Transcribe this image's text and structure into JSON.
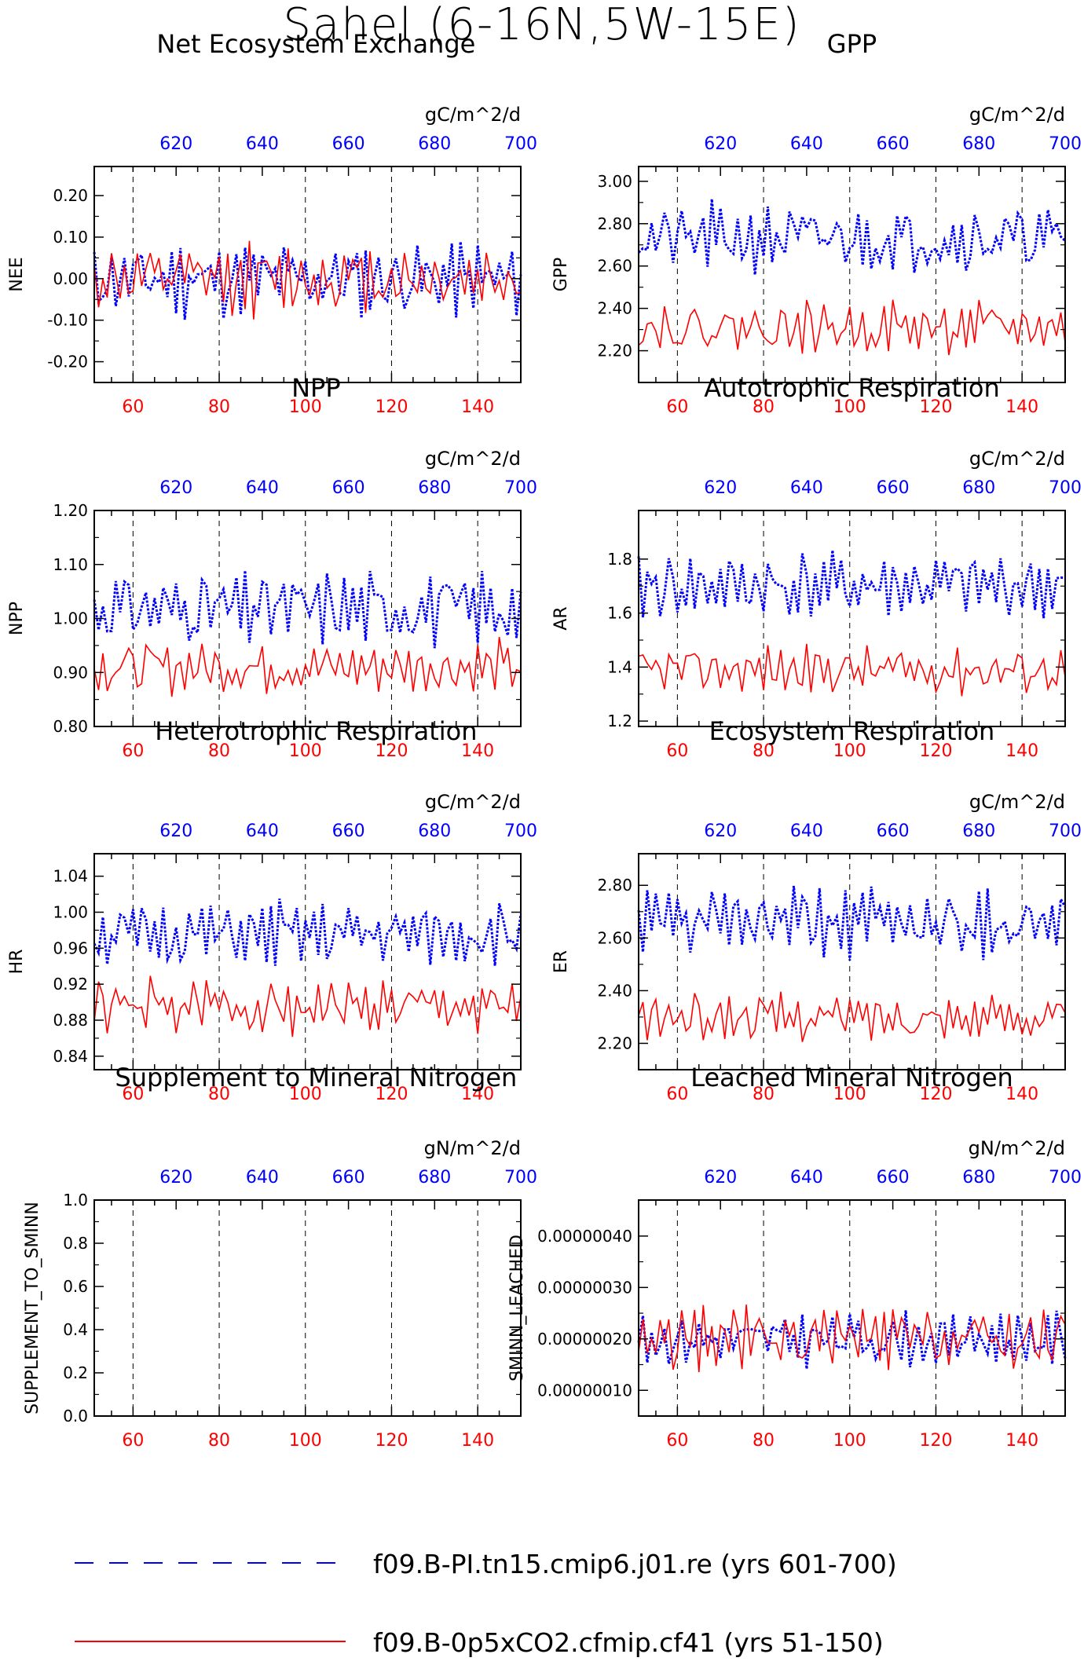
{
  "page": {
    "title": "Sahel (6-16N,5W-15E)",
    "colors": {
      "red": "#ff0000",
      "blue": "#0000ff",
      "axis": "#000000"
    }
  },
  "legend": {
    "blue_label": "f09.B-PI.tn15.cmip6.j01.re (yrs 601-700)",
    "red_label": "f09.B-0p5xCO2.cfmip.cf41 (yrs 51-150)"
  },
  "chart_data": [
    {
      "type": "line",
      "title": "Net Ecosystem Exchange",
      "units": "gC/m^2/d",
      "ylabel": "NEE",
      "ylim": [
        -0.25,
        0.27
      ],
      "yticks": [
        "-0.20",
        "-0.10",
        "0.00",
        "0.10",
        "0.20"
      ],
      "ytick_values": [
        -0.2,
        -0.1,
        0.0,
        0.1,
        0.2
      ],
      "x_red_ticks": [
        "60",
        "80",
        "100",
        "120",
        "140"
      ],
      "x_blue_ticks": [
        "620",
        "640",
        "660",
        "680",
        "700"
      ],
      "xlim_red": [
        51,
        150
      ],
      "xlim_blue": [
        601,
        700
      ],
      "dashed_vlines_at_red_x": [
        60,
        80,
        100,
        120,
        140
      ],
      "series": [
        {
          "name": "f09.B-PI.tn15.cmip6.j01.re (yrs 601-700)",
          "color": "blue",
          "style": "dotted",
          "mean": 0.0,
          "amp": 0.09,
          "seed": 11
        },
        {
          "name": "f09.B-0p5xCO2.cfmip.cf41 (yrs 51-150)",
          "color": "red",
          "style": "solid",
          "mean": 0.0,
          "amp": 0.08,
          "seed": 12
        }
      ]
    },
    {
      "type": "line",
      "title": "GPP",
      "units": "gC/m^2/d",
      "ylabel": "GPP",
      "ylim": [
        2.05,
        3.07
      ],
      "yticks": [
        "2.20",
        "2.40",
        "2.60",
        "2.80",
        "3.00"
      ],
      "ytick_values": [
        2.2,
        2.4,
        2.6,
        2.8,
        3.0
      ],
      "x_red_ticks": [
        "60",
        "80",
        "100",
        "120",
        "140"
      ],
      "x_blue_ticks": [
        "620",
        "640",
        "660",
        "680",
        "700"
      ],
      "xlim_red": [
        51,
        150
      ],
      "xlim_blue": [
        601,
        700
      ],
      "dashed_vlines_at_red_x": [
        60,
        80,
        100,
        120,
        140
      ],
      "series": [
        {
          "name": "f09.B-PI.tn15.cmip6.j01.re (yrs 601-700)",
          "color": "blue",
          "style": "dotted",
          "mean": 2.73,
          "amp": 0.16,
          "seed": 21
        },
        {
          "name": "f09.B-0p5xCO2.cfmip.cf41 (yrs 51-150)",
          "color": "red",
          "style": "solid",
          "mean": 2.31,
          "amp": 0.12,
          "seed": 22
        }
      ]
    },
    {
      "type": "line",
      "title": "NPP",
      "units": "gC/m^2/d",
      "ylabel": "NPP",
      "ylim": [
        0.8,
        1.2
      ],
      "yticks": [
        "0.80",
        "0.90",
        "1.00",
        "1.10",
        "1.20"
      ],
      "ytick_values": [
        0.8,
        0.9,
        1.0,
        1.1,
        1.2
      ],
      "x_red_ticks": [
        "60",
        "80",
        "100",
        "120",
        "140"
      ],
      "x_blue_ticks": [
        "620",
        "640",
        "660",
        "680",
        "700"
      ],
      "xlim_red": [
        51,
        150
      ],
      "xlim_blue": [
        601,
        700
      ],
      "dashed_vlines_at_red_x": [
        60,
        80,
        100,
        120,
        140
      ],
      "series": [
        {
          "name": "f09.B-PI.tn15.cmip6.j01.re (yrs 601-700)",
          "color": "blue",
          "style": "dotted",
          "mean": 1.02,
          "amp": 0.07,
          "seed": 31
        },
        {
          "name": "f09.B-0p5xCO2.cfmip.cf41 (yrs 51-150)",
          "color": "red",
          "style": "solid",
          "mean": 0.91,
          "amp": 0.05,
          "seed": 32
        }
      ]
    },
    {
      "type": "line",
      "title": "Autotrophic Respiration",
      "units": "gC/m^2/d",
      "ylabel": "AR",
      "ylim": [
        1.18,
        1.98
      ],
      "yticks": [
        "1.2",
        "1.4",
        "1.6",
        "1.8"
      ],
      "ytick_values": [
        1.2,
        1.4,
        1.6,
        1.8
      ],
      "x_red_ticks": [
        "60",
        "80",
        "100",
        "120",
        "140"
      ],
      "x_blue_ticks": [
        "620",
        "640",
        "660",
        "680",
        "700"
      ],
      "xlim_red": [
        51,
        150
      ],
      "xlim_blue": [
        601,
        700
      ],
      "dashed_vlines_at_red_x": [
        60,
        80,
        100,
        120,
        140
      ],
      "series": [
        {
          "name": "f09.B-PI.tn15.cmip6.j01.re (yrs 601-700)",
          "color": "blue",
          "style": "dotted",
          "mean": 1.7,
          "amp": 0.13,
          "seed": 41
        },
        {
          "name": "f09.B-0p5xCO2.cfmip.cf41 (yrs 51-150)",
          "color": "red",
          "style": "solid",
          "mean": 1.39,
          "amp": 0.09,
          "seed": 42
        }
      ]
    },
    {
      "type": "line",
      "title": "Heterotrophic Respiration",
      "units": "gC/m^2/d",
      "ylabel": "HR",
      "ylim": [
        0.825,
        1.065
      ],
      "yticks": [
        "0.84",
        "0.88",
        "0.92",
        "0.96",
        "1.00",
        "1.04"
      ],
      "ytick_values": [
        0.84,
        0.88,
        0.92,
        0.96,
        1.0,
        1.04
      ],
      "x_red_ticks": [
        "60",
        "80",
        "100",
        "120",
        "140"
      ],
      "x_blue_ticks": [
        "620",
        "640",
        "660",
        "680",
        "700"
      ],
      "xlim_red": [
        51,
        150
      ],
      "xlim_blue": [
        601,
        700
      ],
      "dashed_vlines_at_red_x": [
        60,
        80,
        100,
        120,
        140
      ],
      "series": [
        {
          "name": "f09.B-PI.tn15.cmip6.j01.re (yrs 601-700)",
          "color": "blue",
          "style": "dotted",
          "mean": 0.975,
          "amp": 0.035,
          "seed": 51
        },
        {
          "name": "f09.B-0p5xCO2.cfmip.cf41 (yrs 51-150)",
          "color": "red",
          "style": "solid",
          "mean": 0.895,
          "amp": 0.03,
          "seed": 52
        }
      ]
    },
    {
      "type": "line",
      "title": "Ecosystem Respiration",
      "units": "gC/m^2/d",
      "ylabel": "ER",
      "ylim": [
        2.1,
        2.92
      ],
      "yticks": [
        "2.20",
        "2.40",
        "2.60",
        "2.80"
      ],
      "ytick_values": [
        2.2,
        2.4,
        2.6,
        2.8
      ],
      "x_red_ticks": [
        "60",
        "80",
        "100",
        "120",
        "140"
      ],
      "x_blue_ticks": [
        "620",
        "640",
        "660",
        "680",
        "700"
      ],
      "xlim_red": [
        51,
        150
      ],
      "xlim_blue": [
        601,
        700
      ],
      "dashed_vlines_at_red_x": [
        60,
        80,
        100,
        120,
        140
      ],
      "series": [
        {
          "name": "f09.B-PI.tn15.cmip6.j01.re (yrs 601-700)",
          "color": "blue",
          "style": "dotted",
          "mean": 2.66,
          "amp": 0.13,
          "seed": 61
        },
        {
          "name": "f09.B-0p5xCO2.cfmip.cf41 (yrs 51-150)",
          "color": "red",
          "style": "solid",
          "mean": 2.3,
          "amp": 0.09,
          "seed": 62
        }
      ]
    },
    {
      "type": "line",
      "title": "Supplement to Mineral Nitrogen",
      "units": "gN/m^2/d",
      "ylabel": "SUPPLEMENT_TO_SMINN",
      "ylim": [
        0.0,
        1.0
      ],
      "yticks": [
        "0.0",
        "0.2",
        "0.4",
        "0.6",
        "0.8",
        "1.0"
      ],
      "ytick_values": [
        0.0,
        0.2,
        0.4,
        0.6,
        0.8,
        1.0
      ],
      "x_red_ticks": [
        "60",
        "80",
        "100",
        "120",
        "140"
      ],
      "x_blue_ticks": [
        "620",
        "640",
        "660",
        "680",
        "700"
      ],
      "xlim_red": [
        51,
        150
      ],
      "xlim_blue": [
        601,
        700
      ],
      "dashed_vlines_at_red_x": [
        60,
        80,
        100,
        120,
        140
      ],
      "series": []
    },
    {
      "type": "line",
      "title": "Leached Mineral Nitrogen",
      "units": "gN/m^2/d",
      "ylabel": "SMINN_LEACHED",
      "ylim": [
        5e-08,
        4.7e-07
      ],
      "yticks": [
        "0.00000010",
        "0.00000020",
        "0.00000030",
        "0.00000040"
      ],
      "ytick_values": [
        1e-07,
        2e-07,
        3e-07,
        4e-07
      ],
      "x_red_ticks": [
        "60",
        "80",
        "100",
        "120",
        "140"
      ],
      "x_blue_ticks": [
        "620",
        "640",
        "660",
        "680",
        "700"
      ],
      "xlim_red": [
        51,
        150
      ],
      "xlim_blue": [
        601,
        700
      ],
      "dashed_vlines_at_red_x": [
        60,
        80,
        100,
        120,
        140
      ],
      "series": [
        {
          "name": "f09.B-PI.tn15.cmip6.j01.re (yrs 601-700)",
          "color": "blue",
          "style": "dotted",
          "mean": 2e-07,
          "amp": 5e-08,
          "seed": 81
        },
        {
          "name": "f09.B-0p5xCO2.cfmip.cf41 (yrs 51-150)",
          "color": "red",
          "style": "solid",
          "mean": 2e-07,
          "amp": 6e-08,
          "seed": 82
        }
      ]
    }
  ]
}
